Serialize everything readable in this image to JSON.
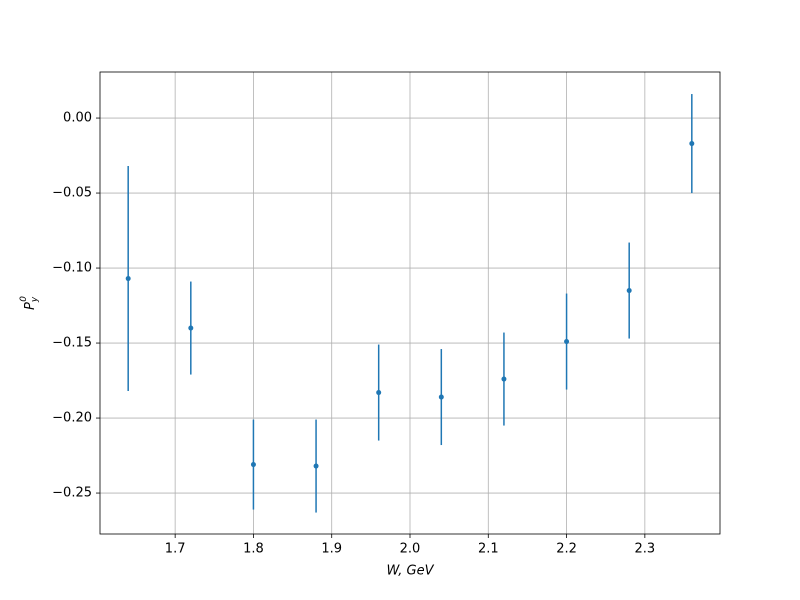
{
  "chart_data": {
    "type": "errorbar",
    "xlabel": "W, GeV",
    "ylabel": {
      "base": "P",
      "sub": "y",
      "sup": "0"
    },
    "x": [
      1.64,
      1.72,
      1.8,
      1.88,
      1.96,
      2.04,
      2.12,
      2.2,
      2.28,
      2.36
    ],
    "series": [
      {
        "color": "#1f77b4",
        "values": [
          -0.107,
          -0.14,
          -0.231,
          -0.232,
          -0.183,
          -0.186,
          -0.174,
          -0.149,
          -0.115,
          -0.017
        ],
        "errors": [
          0.075,
          0.031,
          0.03,
          0.031,
          0.032,
          0.032,
          0.031,
          0.032,
          0.032,
          0.033
        ]
      }
    ],
    "xlim": [
      1.604,
      2.396
    ],
    "ylim": [
      -0.2773,
      0.0307
    ],
    "xticks": [
      1.7,
      1.8,
      1.9,
      {
        "value": 2,
        "label": "2.0"
      },
      2.1,
      2.2,
      2.3
    ],
    "yticks": [
      {
        "value": 0,
        "label": "0.00"
      },
      {
        "value": -0.05,
        "label": "−0.05"
      },
      {
        "value": -0.1,
        "label": "−0.10"
      },
      {
        "value": -0.15,
        "label": "−0.15"
      },
      {
        "value": -0.2,
        "label": "−0.20"
      },
      {
        "value": -0.25,
        "label": "−0.25"
      }
    ],
    "grid": true
  }
}
